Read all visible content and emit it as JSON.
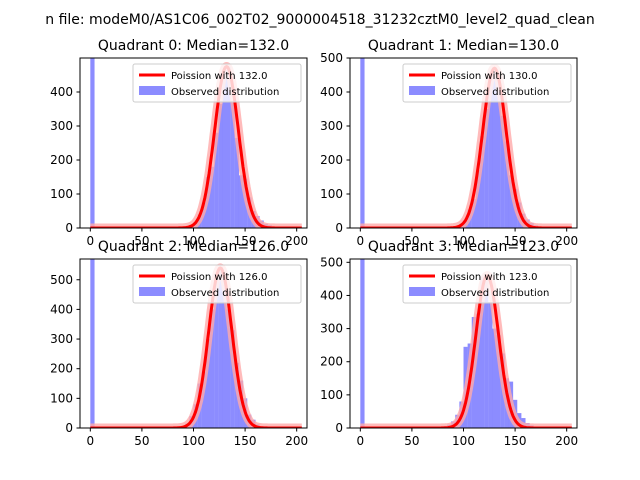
{
  "figure_title": "n file: modeM0/AS1C06_002T02_9000004518_31232cztM0_level2_quad_clean",
  "colors": {
    "hist": "#8080ff",
    "hist_opacity": 0.9,
    "curve": "#ff0000",
    "curve_halo": "#ffaaaa",
    "axis": "#000000"
  },
  "chart_data": [
    {
      "type": "bar",
      "title": "Quadrant 0: Median=132.0",
      "xlim": [
        -10,
        210
      ],
      "ylim": [
        0,
        500
      ],
      "xticks": [
        0,
        50,
        100,
        150,
        200
      ],
      "yticks": [
        0,
        100,
        200,
        300,
        400
      ],
      "legend": {
        "position": "top-right",
        "entries": [
          "Poission with 132.0",
          "Observed distribution"
        ]
      },
      "poisson_mean": 132.0,
      "bin_width": 4.1,
      "hist_x": [
        0,
        4,
        8,
        12,
        16,
        20,
        24,
        28,
        32,
        36,
        40,
        44,
        48,
        52,
        56,
        60,
        64,
        68,
        72,
        76,
        80,
        84,
        88,
        92,
        96,
        100,
        104,
        108,
        112,
        116,
        120,
        124,
        128,
        132,
        136,
        140,
        144,
        148,
        152,
        156,
        160,
        164,
        168,
        172,
        176,
        180,
        184,
        188,
        192,
        196,
        200
      ],
      "hist_values": [
        500,
        0,
        0,
        0,
        0,
        0,
        0,
        0,
        0,
        0,
        0,
        0,
        0,
        0,
        0,
        0,
        0,
        0,
        0,
        0,
        0,
        1,
        2,
        4,
        9,
        18,
        40,
        75,
        150,
        180,
        280,
        365,
        465,
        475,
        375,
        265,
        155,
        145,
        90,
        50,
        35,
        22,
        12,
        8,
        4,
        2,
        1,
        0,
        0,
        0,
        0
      ]
    },
    {
      "type": "bar",
      "title": "Quadrant 1: Median=130.0",
      "xlim": [
        -10,
        210
      ],
      "ylim": [
        0,
        500
      ],
      "xticks": [
        0,
        50,
        100,
        150,
        200
      ],
      "yticks": [
        0,
        100,
        200,
        300,
        400,
        500
      ],
      "legend": {
        "position": "top-right",
        "entries": [
          "Poission with 130.0",
          "Observed distribution"
        ]
      },
      "poisson_mean": 130.0,
      "bin_width": 4.1,
      "hist_x": [
        0,
        4,
        8,
        12,
        16,
        20,
        24,
        28,
        32,
        36,
        40,
        44,
        48,
        52,
        56,
        60,
        64,
        68,
        72,
        76,
        80,
        84,
        88,
        92,
        96,
        100,
        104,
        108,
        112,
        116,
        120,
        124,
        128,
        132,
        136,
        140,
        144,
        148,
        152,
        156,
        160,
        164,
        168,
        172,
        176,
        180,
        184,
        188,
        192,
        196,
        200
      ],
      "hist_values": [
        500,
        0,
        0,
        0,
        0,
        0,
        0,
        0,
        0,
        0,
        0,
        0,
        0,
        0,
        0,
        0,
        0,
        0,
        0,
        0,
        1,
        2,
        3,
        5,
        12,
        22,
        55,
        85,
        170,
        270,
        350,
        445,
        470,
        450,
        330,
        255,
        155,
        115,
        75,
        42,
        25,
        15,
        8,
        4,
        2,
        1,
        0,
        0,
        0,
        0,
        0
      ]
    },
    {
      "type": "bar",
      "title": "Quadrant 2: Median=126.0",
      "xlim": [
        -10,
        210
      ],
      "ylim": [
        0,
        570
      ],
      "xticks": [
        0,
        50,
        100,
        150,
        200
      ],
      "yticks": [
        0,
        100,
        200,
        300,
        400,
        500
      ],
      "legend": {
        "position": "top-right",
        "entries": [
          "Poission with 126.0",
          "Observed distribution"
        ]
      },
      "poisson_mean": 126.0,
      "bin_width": 4.1,
      "hist_x": [
        0,
        4,
        8,
        12,
        16,
        20,
        24,
        28,
        32,
        36,
        40,
        44,
        48,
        52,
        56,
        60,
        64,
        68,
        72,
        76,
        80,
        84,
        88,
        92,
        96,
        100,
        104,
        108,
        112,
        116,
        120,
        124,
        128,
        132,
        136,
        140,
        144,
        148,
        152,
        156,
        160,
        164,
        168,
        172,
        176,
        180,
        184,
        188,
        192,
        196,
        200
      ],
      "hist_values": [
        570,
        0,
        0,
        0,
        0,
        0,
        0,
        0,
        0,
        0,
        0,
        0,
        0,
        0,
        0,
        0,
        0,
        0,
        0,
        0,
        1,
        2,
        5,
        15,
        40,
        80,
        150,
        190,
        300,
        400,
        520,
        540,
        500,
        400,
        330,
        220,
        160,
        100,
        45,
        28,
        12,
        6,
        3,
        1,
        0,
        0,
        0,
        0,
        0,
        0,
        0
      ]
    },
    {
      "type": "bar",
      "title": "Quadrant 3: Median=123.0",
      "xlim": [
        -10,
        210
      ],
      "ylim": [
        0,
        510
      ],
      "xticks": [
        0,
        50,
        100,
        150,
        200
      ],
      "yticks": [
        0,
        100,
        200,
        300,
        400,
        500
      ],
      "legend": {
        "position": "top-right",
        "entries": [
          "Poission with 123.0",
          "Observed distribution"
        ]
      },
      "poisson_mean": 123.0,
      "bin_width": 4.1,
      "hist_x": [
        0,
        4,
        8,
        12,
        16,
        20,
        24,
        28,
        32,
        36,
        40,
        44,
        48,
        52,
        56,
        60,
        64,
        68,
        72,
        76,
        80,
        84,
        88,
        92,
        96,
        100,
        104,
        108,
        112,
        116,
        120,
        124,
        128,
        132,
        136,
        140,
        144,
        148,
        152,
        156,
        160,
        164,
        168,
        172,
        176,
        180,
        184,
        188,
        192,
        196,
        200
      ],
      "hist_values": [
        510,
        0,
        0,
        0,
        0,
        0,
        0,
        0,
        2,
        1,
        0,
        0,
        0,
        0,
        1,
        0,
        0,
        0,
        0,
        4,
        5,
        10,
        20,
        40,
        80,
        245,
        255,
        335,
        345,
        455,
        460,
        380,
        300,
        280,
        225,
        150,
        140,
        85,
        45,
        30,
        15,
        8,
        4,
        2,
        1,
        0,
        0,
        0,
        0,
        0,
        0
      ]
    }
  ]
}
